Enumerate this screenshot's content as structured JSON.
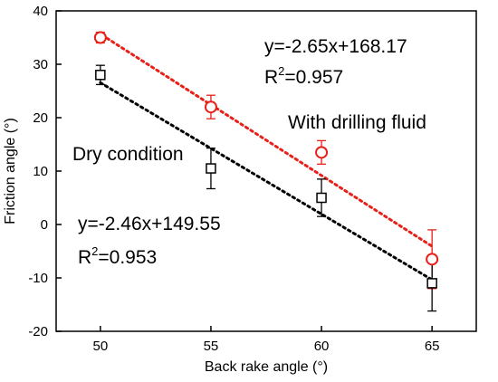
{
  "chart_data": {
    "type": "scatter",
    "xlabel": "Back rake angle (°)",
    "ylabel": "Friction angle (°)",
    "xlim": [
      48,
      67
    ],
    "ylim": [
      -20,
      40
    ],
    "x_ticks": [
      50,
      55,
      60,
      65
    ],
    "y_ticks": [
      -20,
      -10,
      0,
      10,
      20,
      30,
      40
    ],
    "grid": false,
    "series": [
      {
        "name": "With drilling fluid",
        "marker": "circle",
        "color": "#e8201a",
        "x": [
          50,
          55,
          60,
          65
        ],
        "y": [
          35.0,
          22.0,
          13.5,
          -6.5
        ],
        "error": [
          1.0,
          2.2,
          2.2,
          5.5
        ],
        "fit": {
          "slope": -2.65,
          "intercept": 168.17,
          "x_range": [
            50.3,
            65
          ]
        }
      },
      {
        "name": "Dry condition",
        "marker": "square",
        "color": "#000000",
        "x": [
          50,
          55,
          60,
          65
        ],
        "y": [
          28.0,
          10.5,
          5.0,
          -11.0
        ],
        "error": [
          1.8,
          3.8,
          3.5,
          5.2
        ],
        "fit": {
          "slope": -2.46,
          "intercept": 149.55,
          "x_range": [
            50,
            65
          ]
        }
      }
    ],
    "annotations": {
      "fluid_label": "With drilling fluid",
      "dry_label": "Dry condition",
      "fluid_eq": "y=-2.65x+168.17",
      "fluid_r2_prefix": "R",
      "fluid_r2_sup": "2",
      "fluid_r2_value": "=0.957",
      "dry_eq": "y=-2.46x+149.55",
      "dry_r2_prefix": "R",
      "dry_r2_sup": "2",
      "dry_r2_value": "=0.953"
    }
  }
}
